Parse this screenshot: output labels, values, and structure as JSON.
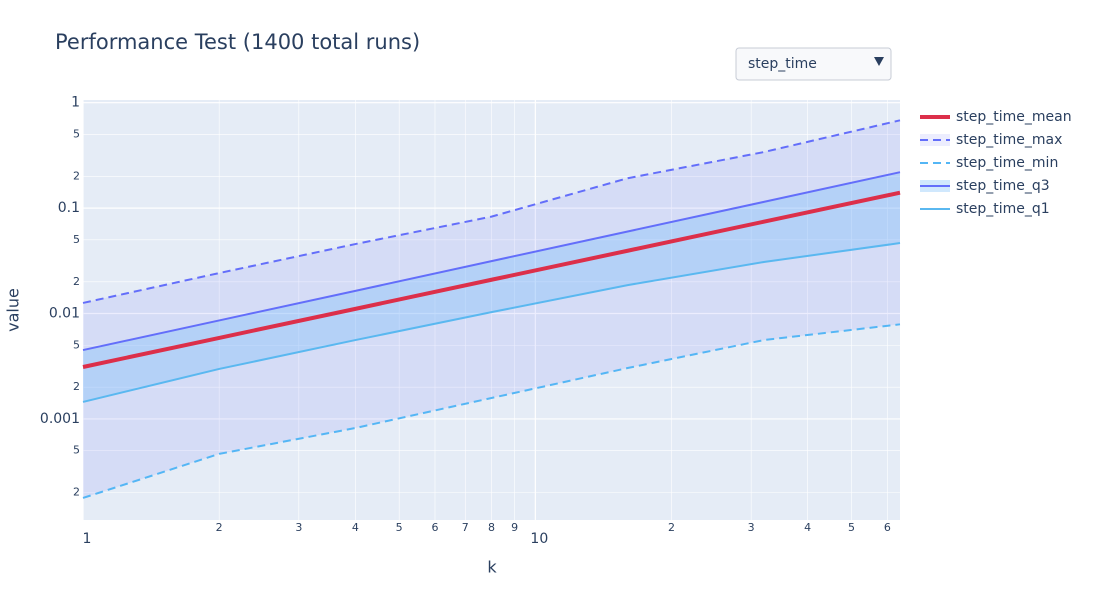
{
  "chart_data": {
    "type": "line",
    "title": "Performance Test (1400 total runs)",
    "dropdown": {
      "selected": "step_time"
    },
    "x_label": "k",
    "y_label": "value",
    "log_x": true,
    "log_y": true,
    "grid": true,
    "x": [
      1,
      2,
      4,
      8,
      16,
      32,
      64
    ],
    "xlim": [
      1,
      64
    ],
    "xticks": [
      1,
      {
        "value": 2,
        "label": "2"
      },
      {
        "value": 3,
        "label": "3"
      },
      {
        "value": 4,
        "label": "4"
      },
      {
        "value": 5,
        "label": "5"
      },
      {
        "value": 6,
        "label": "6"
      },
      {
        "value": 7,
        "label": "7"
      },
      {
        "value": 8,
        "label": "8"
      },
      {
        "value": 9,
        "label": "9"
      },
      10,
      {
        "value": 20,
        "label": "2"
      },
      {
        "value": 30,
        "label": "3"
      },
      {
        "value": 40,
        "label": "4"
      },
      {
        "value": 50,
        "label": "5"
      },
      {
        "value": 60,
        "label": "6"
      }
    ],
    "ylim": [
      0.00011,
      1.06
    ],
    "yticks": [
      {
        "value": 0.0002,
        "label": "2"
      },
      {
        "value": 0.0005,
        "label": "5"
      },
      0.001,
      {
        "value": 0.002,
        "label": "2"
      },
      {
        "value": 0.005,
        "label": "5"
      },
      0.01,
      {
        "value": 0.02,
        "label": "2"
      },
      {
        "value": 0.05,
        "label": "5"
      },
      0.1,
      {
        "value": 0.2,
        "label": "2"
      },
      {
        "value": 0.5,
        "label": "5"
      },
      1
    ],
    "series": [
      {
        "name": "step_time_mean",
        "color": "#dc2f4a",
        "width": 4,
        "values": [
          0.00311,
          0.00587,
          0.01107,
          0.0209,
          0.0394,
          0.0743,
          0.14
        ]
      },
      {
        "name": "step_time_max",
        "color": "#636efa",
        "width": 2,
        "dash": true,
        "fill": "rgba(99,110,250,0.12)",
        "fill_to": 2,
        "values": [
          0.0126,
          0.0242,
          0.0456,
          0.083,
          0.192,
          0.34,
          0.68
        ]
      },
      {
        "name": "step_time_min",
        "color": "#54b6f5",
        "width": 2,
        "dash": true,
        "values": [
          0.000178,
          0.000466,
          0.00082,
          0.00158,
          0.00304,
          0.0056,
          0.0079
        ]
      },
      {
        "name": "step_time_q3",
        "color": "#636efa",
        "width": 2,
        "fill": "rgba(120,190,250,0.35)",
        "fill_to": 4,
        "values": [
          0.0045,
          0.0086,
          0.0164,
          0.0314,
          0.06,
          0.1145,
          0.219
        ]
      },
      {
        "name": "step_time_q1",
        "color": "#5ab8f0",
        "width": 2,
        "values": [
          0.00145,
          0.00298,
          0.0056,
          0.0103,
          0.0186,
          0.0308,
          0.0466
        ]
      }
    ]
  }
}
